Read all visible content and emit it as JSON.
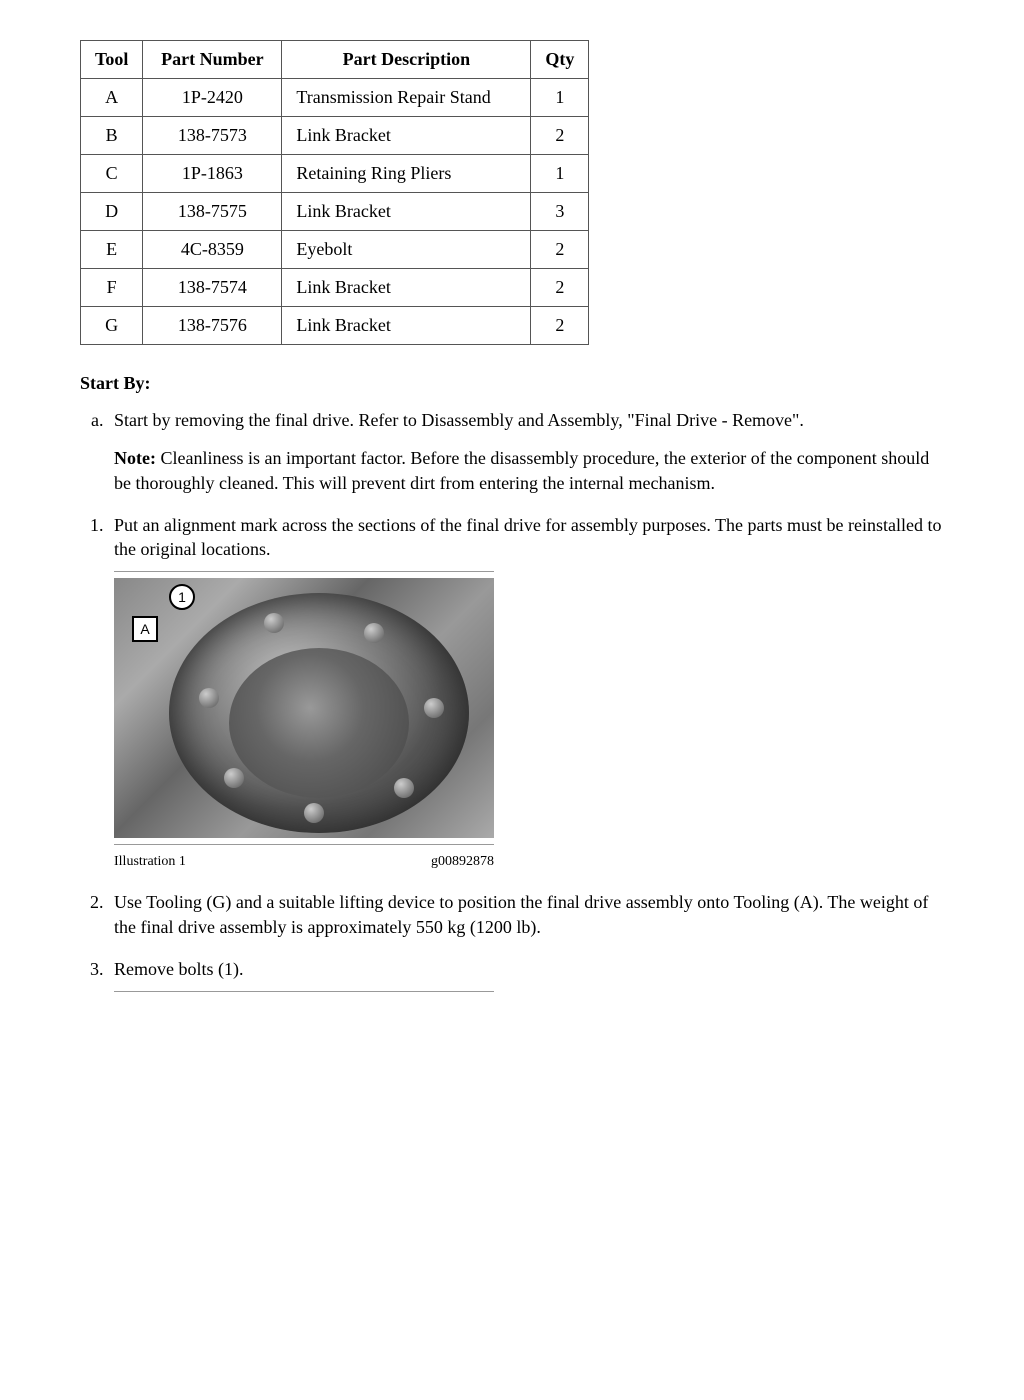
{
  "table": {
    "headers": {
      "tool": "Tool",
      "pn": "Part Number",
      "desc": "Part Description",
      "qty": "Qty"
    },
    "rows": [
      {
        "tool": "A",
        "pn": "1P-2420",
        "desc": "Transmission Repair Stand",
        "qty": "1"
      },
      {
        "tool": "B",
        "pn": "138-7573",
        "desc": "Link Bracket",
        "qty": "2"
      },
      {
        "tool": "C",
        "pn": "1P-1863",
        "desc": "Retaining Ring Pliers",
        "qty": "1"
      },
      {
        "tool": "D",
        "pn": "138-7575",
        "desc": "Link Bracket",
        "qty": "3"
      },
      {
        "tool": "E",
        "pn": "4C-8359",
        "desc": "Eyebolt",
        "qty": "2"
      },
      {
        "tool": "F",
        "pn": "138-7574",
        "desc": "Link Bracket",
        "qty": "2"
      },
      {
        "tool": "G",
        "pn": "138-7576",
        "desc": "Link Bracket",
        "qty": "2"
      }
    ]
  },
  "startByLabel": "Start By:",
  "stepA": "Start by removing the final drive. Refer to Disassembly and Assembly, \"Final Drive - Remove\".",
  "noteLabel": "Note:",
  "noteText": " Cleanliness is an important factor. Before the disassembly procedure, the exterior of the component should be thoroughly cleaned. This will prevent dirt from entering the internal mechanism.",
  "step1": "Put an alignment mark across the sections of the final drive for assembly purposes. The parts must be reinstalled to the original locations.",
  "step2": "Use Tooling (G) and a suitable lifting device to position the final drive assembly onto Tooling (A). The weight of the final drive assembly is approximately 550 kg (1200 lb).",
  "step3": "Remove bolts (1).",
  "illustration": {
    "label": "Illustration 1",
    "code": "g00892878",
    "callout1": "1",
    "calloutA": "A"
  }
}
